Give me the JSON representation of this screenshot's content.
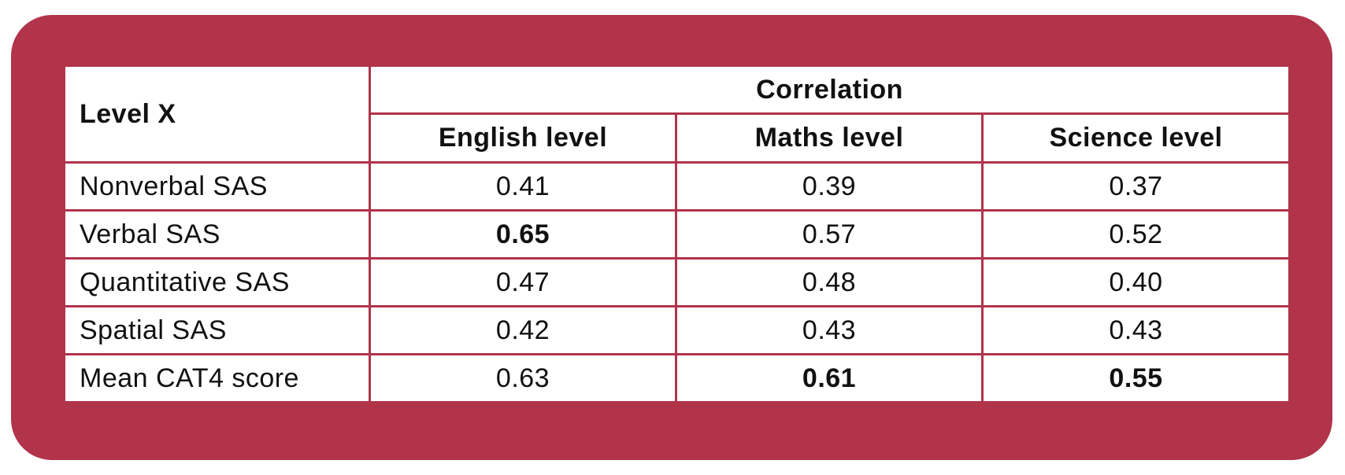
{
  "colors": {
    "frame": "#b1344b",
    "table_bg": "#ffffff",
    "text": "#111111"
  },
  "table": {
    "corner_label": "Level X",
    "group_header": "Correlation",
    "columns": [
      "English level",
      "Maths level",
      "Science level"
    ],
    "rows": [
      {
        "label": "Nonverbal SAS",
        "values": [
          "0.41",
          "0.39",
          "0.37"
        ],
        "bold": [
          false,
          false,
          false
        ]
      },
      {
        "label": "Verbal SAS",
        "values": [
          "0.65",
          "0.57",
          "0.52"
        ],
        "bold": [
          true,
          false,
          false
        ]
      },
      {
        "label": "Quantitative  SAS",
        "values": [
          "0.47",
          "0.48",
          "0.40"
        ],
        "bold": [
          false,
          false,
          false
        ]
      },
      {
        "label": "Spatial  SAS",
        "values": [
          "0.42",
          "0.43",
          "0.43"
        ],
        "bold": [
          false,
          false,
          false
        ]
      },
      {
        "label": "Mean CAT4 score",
        "values": [
          "0.63",
          "0.61",
          "0.55"
        ],
        "bold": [
          false,
          true,
          true
        ]
      }
    ]
  }
}
